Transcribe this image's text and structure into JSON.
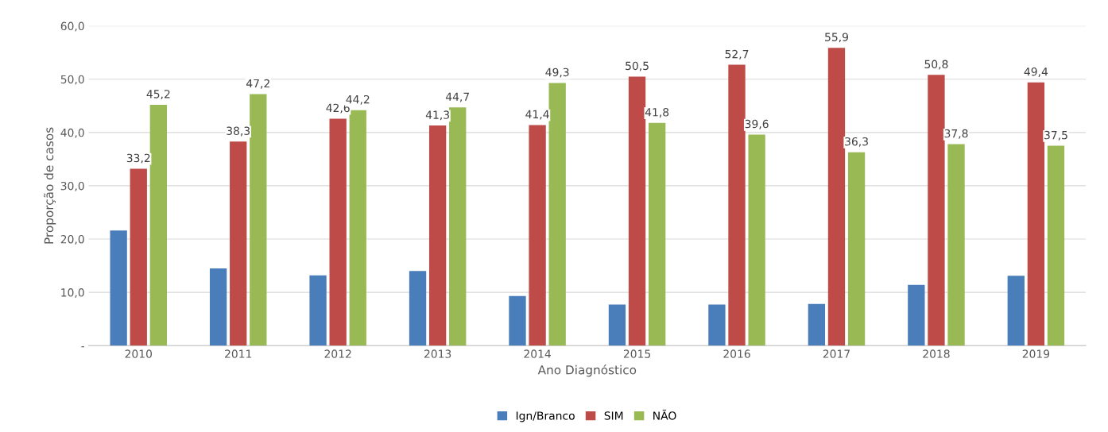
{
  "chart_data": {
    "type": "bar",
    "xlabel": "Ano Diagnóstico",
    "ylabel": "Proporção de casos",
    "categories": [
      "2010",
      "2011",
      "2012",
      "2013",
      "2014",
      "2015",
      "2016",
      "2017",
      "2018",
      "2019"
    ],
    "series": [
      {
        "name": "Ign/Branco",
        "color": "#4a7ebb",
        "values": [
          21.6,
          14.5,
          13.2,
          14.0,
          9.3,
          7.7,
          7.7,
          7.8,
          11.4,
          13.1
        ]
      },
      {
        "name": "SIM",
        "color": "#be4b48",
        "values": [
          33.2,
          38.3,
          42.6,
          41.3,
          41.4,
          50.5,
          52.7,
          55.9,
          50.8,
          49.4
        ],
        "value_labels": [
          "33,2",
          "38,3",
          "42,6",
          "41,3",
          "41,4",
          "50,5",
          "52,7",
          "55,9",
          "50,8",
          "49,4"
        ]
      },
      {
        "name": "NÃO",
        "color": "#98b954",
        "values": [
          45.2,
          47.2,
          44.2,
          44.7,
          49.3,
          41.8,
          39.6,
          36.3,
          37.8,
          37.5
        ],
        "value_labels": [
          "45,2",
          "47,2",
          "44,2",
          "44,7",
          "49,3",
          "41,8",
          "39,6",
          "36,3",
          "37,8",
          "37,5"
        ]
      }
    ],
    "ylim": [
      0,
      60
    ],
    "yticks": [
      {
        "value": 0,
        "label": "-"
      },
      {
        "value": 10,
        "label": "10,0"
      },
      {
        "value": 20,
        "label": "20,0"
      },
      {
        "value": 30,
        "label": "30,0"
      },
      {
        "value": 40,
        "label": "40,0"
      },
      {
        "value": 50,
        "label": "50,0"
      },
      {
        "value": 60,
        "label": "60,0"
      }
    ],
    "grid": "y",
    "legend": "bottom"
  }
}
